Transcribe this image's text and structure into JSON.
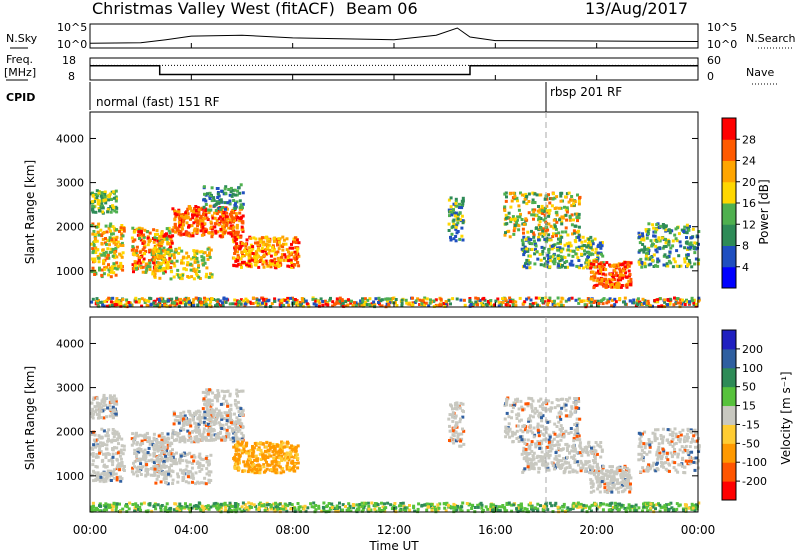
{
  "header": {
    "station": "Christmas Valley West (fitACF)",
    "beam": "Beam 06",
    "date": "13/Aug/2017"
  },
  "labels": {
    "nsky": "N.Sky",
    "nsearch": "N.Search",
    "freq_line1": "Freq.",
    "freq_line2": "[MHz]",
    "nave": "Nave",
    "cpid": "CPID",
    "cpid_mode_1": "normal (fast) 151 RF",
    "cpid_mode_2": "rbsp 201 RF"
  },
  "colors": {
    "power_scale": [
      "#0000ff",
      "#1f4fc0",
      "#2e8b57",
      "#4fb04f",
      "#ffd700",
      "#ffa500",
      "#ff5a00",
      "#ff0000"
    ],
    "velocity_scale": [
      "#2020c0",
      "#2f5fa0",
      "#2e8b57",
      "#57c23c",
      "#c8c8c0",
      "#ffcc33",
      "#ff9900",
      "#ff5500",
      "#ff0000"
    ]
  },
  "chart_data": [
    {
      "type": "line",
      "panel": "noise",
      "left_ticks": [
        "10^5",
        "10^0"
      ],
      "right_ticks": [
        "10^5",
        "10^0"
      ],
      "series": [
        {
          "name": "N.Sky",
          "x": [
            "00:00",
            "02:00",
            "03:00",
            "04:00",
            "06:00",
            "08:00",
            "12:00",
            "13:40",
            "14:30",
            "15:00",
            "16:00",
            "20:00",
            "00:00"
          ],
          "values": [
            0.15,
            0.18,
            0.35,
            0.55,
            0.6,
            0.45,
            0.35,
            0.6,
            1.0,
            0.5,
            0.3,
            0.28,
            0.25
          ]
        }
      ]
    },
    {
      "type": "line",
      "panel": "frequency",
      "left_ticks": [
        "18",
        "8"
      ],
      "right_ticks": [
        "60",
        "0"
      ],
      "series": [
        {
          "name": "Freq.",
          "x": [
            "00:00",
            "02:45",
            "02:45",
            "15:00",
            "15:00",
            "00:00"
          ],
          "values": [
            14.5,
            14.5,
            10.5,
            10.5,
            14.5,
            14.5
          ]
        },
        {
          "name": "Nave",
          "x": [
            "00:00",
            "00:00"
          ],
          "values": [
            40,
            40
          ]
        }
      ]
    },
    {
      "type": "heatmap",
      "panel": "power",
      "ylabel": "Slant Range [km]",
      "y_ticks": [
        1000,
        2000,
        3000,
        4000
      ],
      "ylim": [
        180,
        4600
      ],
      "x_ticks": [
        "00:00",
        "04:00",
        "08:00",
        "12:00",
        "16:00",
        "20:00",
        "00:00"
      ],
      "colorbar_label": "Power [dB]",
      "colorbar_ticks": [
        4,
        8,
        12,
        16,
        20,
        24,
        28
      ],
      "marker_time_hours": 18
    },
    {
      "type": "heatmap",
      "panel": "velocity",
      "ylabel": "Slant Range [km]",
      "y_ticks": [
        1000,
        2000,
        3000,
        4000
      ],
      "ylim": [
        180,
        4600
      ],
      "x_ticks": [
        "00:00",
        "04:00",
        "08:00",
        "12:00",
        "16:00",
        "20:00",
        "00:00"
      ],
      "xlabel": "Time UT",
      "colorbar_label": "Velocity [m s⁻¹]",
      "colorbar_ticks": [
        "200",
        "100",
        "50",
        "15",
        "-15",
        "-50",
        "-100",
        "-200"
      ],
      "marker_time_hours": 18
    }
  ]
}
